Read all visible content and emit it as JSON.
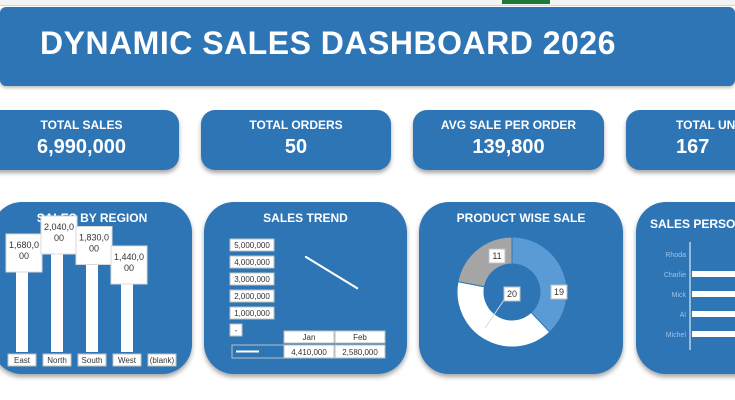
{
  "title": "DYNAMIC SALES DASHBOARD 2026",
  "kpis": [
    {
      "label": "TOTAL SALES",
      "value": "6,990,000"
    },
    {
      "label": "TOTAL ORDERS",
      "value": "50"
    },
    {
      "label": "AVG SALE PER ORDER",
      "value": "139,800"
    },
    {
      "label": "TOTAL UN",
      "value": "167"
    }
  ],
  "panels": {
    "region": "SALES BY REGION",
    "trend": "SALES TREND",
    "product": "PRODUCT WISE SALE",
    "person": "SALES PERSON"
  },
  "colors": {
    "panel": "#2e75b6",
    "bar": "#ffffff",
    "donut_light": "#5b9bd5",
    "donut_gray": "#a5a5a5"
  },
  "chart_data": [
    {
      "type": "bar",
      "title": "SALES BY REGION",
      "categories": [
        "East",
        "North",
        "South",
        "West",
        "(blank)"
      ],
      "values": [
        1680000,
        2040000,
        1830000,
        1440000,
        null
      ],
      "data_labels": [
        "1,680,0\n00",
        "2,040,0\n00",
        "1,830,0\n00",
        "1,440,0\n00",
        ""
      ]
    },
    {
      "type": "line",
      "title": "SALES TREND",
      "categories": [
        "Jan",
        "Feb"
      ],
      "values": [
        4410000,
        2580000
      ],
      "y_ticks": [
        "5,000,000",
        "4,000,000",
        "3,000,000",
        "2,000,000",
        "1,000,000",
        "-"
      ],
      "table_values": [
        "4,410,000",
        "2,580,000"
      ],
      "ylim": [
        0,
        5000000
      ]
    },
    {
      "type": "pie",
      "title": "PRODUCT WISE SALE",
      "donut": true,
      "values": [
        19,
        20,
        11
      ],
      "labels": [
        "19",
        "20",
        "11"
      ]
    },
    {
      "type": "bar",
      "title": "SALES PERSON",
      "orientation": "horizontal",
      "categories": [
        "Rhoda",
        "Charlie",
        "Mick",
        "Al",
        "Michel"
      ]
    }
  ]
}
